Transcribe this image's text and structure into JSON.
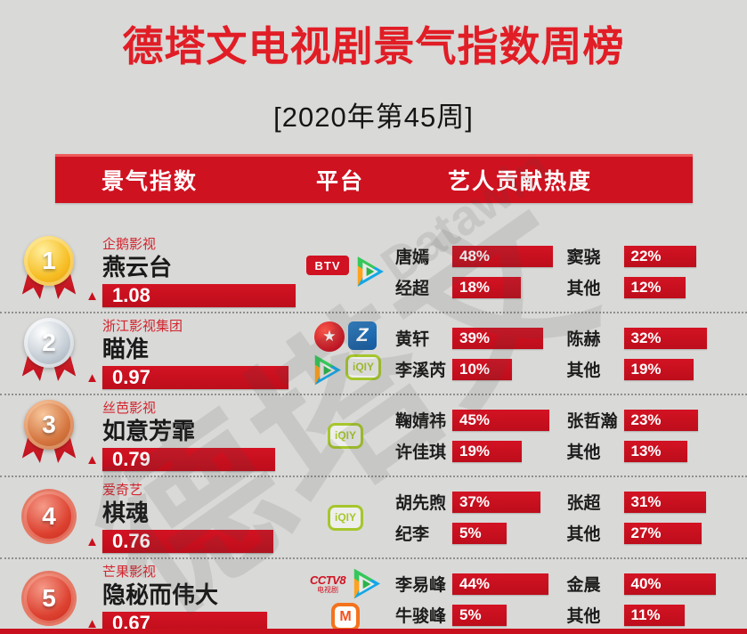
{
  "page": {
    "title": "德塔文电视剧景气指数周榜",
    "subtitle": "[2020年第45周]"
  },
  "table_header": {
    "index_col": "景气指数",
    "platform_col": "平台",
    "contribution_col": "艺人贡献热度"
  },
  "watermark": {
    "cn": "德塔文",
    "en": "Datawin"
  },
  "glyphs": {
    "trend_up": "▲",
    "star": "★"
  },
  "platform_labels": {
    "btv": "BTV",
    "iqiyi": "iQIY",
    "cctv8_top": "CCTV8",
    "cctv8_sub": "电视剧",
    "zhejiang": "Z",
    "mango": "M"
  },
  "colors": {
    "primary_red": "#c9101e",
    "header_red": "#cf1220",
    "title_red": "#e11d26",
    "background_gray": "#d9d9d7"
  },
  "chart_data": {
    "type": "bar",
    "title": "德塔文电视剧景气指数周榜",
    "subtitle": "[2020年第45周]",
    "ylabel": "景气指数",
    "categories": [
      "燕云台",
      "瞄准",
      "如意芳霏",
      "棋魂",
      "隐秘而伟大"
    ],
    "values": [
      1.08,
      0.97,
      0.79,
      0.76,
      0.67
    ],
    "rows": [
      {
        "rank": 1,
        "medal": "gold",
        "company": "企鹅影视",
        "drama": "燕云台",
        "index": "1.08",
        "trend": "up",
        "platforms": [
          {
            "icon": "btv-logo",
            "label": "BTV"
          },
          {
            "icon": "tencent-video-logo",
            "label": "腾讯视频"
          }
        ],
        "actors": [
          {
            "name": "唐嫣",
            "pct": 48
          },
          {
            "name": "窦骁",
            "pct": 22
          },
          {
            "name": "经超",
            "pct": 18
          },
          {
            "name": "其他",
            "pct": 12
          }
        ]
      },
      {
        "rank": 2,
        "medal": "silver",
        "company": "浙江影视集团",
        "drama": "瞄准",
        "index": "0.97",
        "trend": "up",
        "platforms": [
          {
            "icon": "dragon-tv-logo",
            "label": "东方卫视"
          },
          {
            "icon": "zhejiang-tv-logo",
            "label": "浙江卫视"
          },
          {
            "icon": "tencent-video-logo",
            "label": "腾讯视频"
          },
          {
            "icon": "iqiyi-logo",
            "label": "爱奇艺"
          }
        ],
        "actors": [
          {
            "name": "黄轩",
            "pct": 39
          },
          {
            "name": "陈赫",
            "pct": 32
          },
          {
            "name": "李溪芮",
            "pct": 10
          },
          {
            "name": "其他",
            "pct": 19
          }
        ]
      },
      {
        "rank": 3,
        "medal": "bronze",
        "company": "丝芭影视",
        "drama": "如意芳霏",
        "index": "0.79",
        "trend": "up",
        "platforms": [
          {
            "icon": "iqiyi-logo",
            "label": "爱奇艺"
          }
        ],
        "actors": [
          {
            "name": "鞠婧祎",
            "pct": 45
          },
          {
            "name": "张哲瀚",
            "pct": 23
          },
          {
            "name": "许佳琪",
            "pct": 19
          },
          {
            "name": "其他",
            "pct": 13
          }
        ]
      },
      {
        "rank": 4,
        "medal": "red",
        "company": "爱奇艺",
        "drama": "棋魂",
        "index": "0.76",
        "trend": "up",
        "platforms": [
          {
            "icon": "iqiyi-logo",
            "label": "爱奇艺"
          }
        ],
        "actors": [
          {
            "name": "胡先煦",
            "pct": 37
          },
          {
            "name": "张超",
            "pct": 31
          },
          {
            "name": "纪李",
            "pct": 5
          },
          {
            "name": "其他",
            "pct": 27
          }
        ]
      },
      {
        "rank": 5,
        "medal": "red",
        "company": "芒果影视",
        "drama": "隐秘而伟大",
        "index": "0.67",
        "trend": "up",
        "platforms": [
          {
            "icon": "cctv8-logo",
            "label": "CCTV8电视剧"
          },
          {
            "icon": "tencent-video-logo",
            "label": "腾讯视频"
          },
          {
            "icon": "mango-tv-logo",
            "label": "芒果TV"
          }
        ],
        "actors": [
          {
            "name": "李易峰",
            "pct": 44
          },
          {
            "name": "金晨",
            "pct": 40
          },
          {
            "name": "牛骏峰",
            "pct": 5
          },
          {
            "name": "其他",
            "pct": 11
          }
        ]
      }
    ]
  }
}
